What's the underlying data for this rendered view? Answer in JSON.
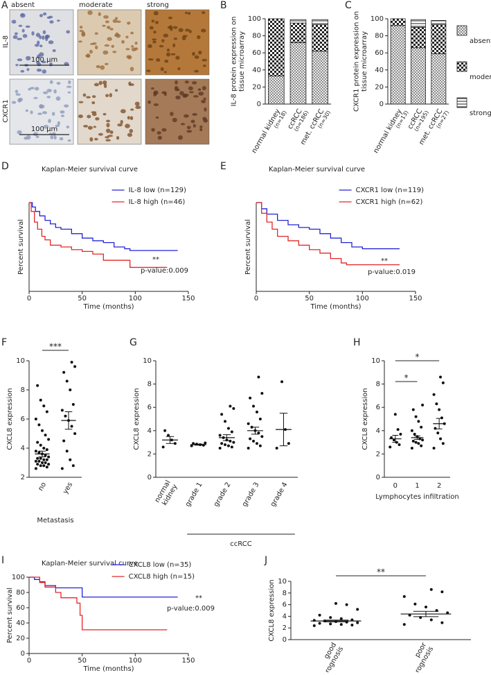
{
  "panel_a": {
    "panel": "A",
    "columns": [
      "absent",
      "moderate",
      "strong"
    ],
    "rows": [
      "IL-8",
      "CXCR1"
    ],
    "scale_bars": [
      "100 µm",
      "100 µm"
    ]
  },
  "chart_data": [
    {
      "type": "bar",
      "stacked": true,
      "panel": "B",
      "ylabel": "IL-8 protein expression on tissue microarray",
      "categories": [
        "normal kidney",
        "ccRCC",
        "met. ccRCC"
      ],
      "category_notes": [
        "(n=18)",
        "(n=186)",
        "(n=30)"
      ],
      "series": [
        {
          "values": [
            33,
            72,
            62
          ]
        },
        {
          "values": [
            67,
            23,
            31
          ]
        },
        {
          "values": [
            0,
            4,
            6
          ]
        }
      ],
      "ylim": [
        0,
        100
      ],
      "yticks": [
        0,
        20,
        40,
        60,
        80,
        100
      ]
    },
    {
      "type": "bar",
      "stacked": true,
      "panel": "C",
      "ylabel": "CXCR1 protein expression on tissue microarray",
      "categories": [
        "normal kidney",
        "ccRCC",
        "met. ccRCC"
      ],
      "category_notes": [
        "(n=13)",
        "(n=195)",
        "(n=27)"
      ],
      "series": [
        {
          "name": "absent",
          "values": [
            92,
            66,
            59
          ]
        },
        {
          "name": "moderate",
          "values": [
            8,
            24,
            34
          ]
        },
        {
          "name": "strong",
          "values": [
            0,
            9,
            5
          ]
        }
      ],
      "ylim": [
        0,
        100
      ],
      "yticks": [
        0,
        20,
        40,
        60,
        80,
        100
      ],
      "legend": "right"
    },
    {
      "type": "line",
      "step": true,
      "panel": "D",
      "title": "Kaplan-Meier survival curve",
      "xlabel": "Time (months)",
      "ylabel": "Percent survival",
      "series": [
        {
          "name": "IL-8 low (n=129)",
          "color": "#2323d6",
          "x": [
            0,
            3,
            6,
            10,
            15,
            20,
            25,
            30,
            40,
            50,
            60,
            70,
            80,
            90,
            95,
            140
          ],
          "values": [
            100,
            95,
            90,
            85,
            80,
            76,
            72,
            70,
            65,
            60,
            57,
            55,
            50,
            48,
            46,
            46
          ]
        },
        {
          "name": "IL-8 high (n=46)",
          "color": "#e32626",
          "x": [
            0,
            2,
            5,
            8,
            12,
            15,
            20,
            30,
            40,
            50,
            60,
            70,
            90,
            95,
            130
          ],
          "values": [
            100,
            90,
            78,
            70,
            62,
            58,
            52,
            50,
            47,
            45,
            42,
            35,
            35,
            27,
            27
          ]
        }
      ],
      "xlim": [
        0,
        150
      ],
      "xticks": [
        0,
        50,
        100,
        150
      ],
      "ylim": [
        0,
        100
      ],
      "annotations": [
        "**",
        "p-value:0.009"
      ],
      "legend": "upper right"
    },
    {
      "type": "line",
      "step": true,
      "panel": "E",
      "title": "Kaplan-Meier survival curve",
      "xlabel": "Time (months)",
      "ylabel": "Percent survival",
      "series": [
        {
          "name": "CXCR1 low (n=119)",
          "color": "#2323d6",
          "x": [
            0,
            5,
            10,
            20,
            30,
            40,
            50,
            60,
            70,
            80,
            90,
            100,
            135
          ],
          "values": [
            100,
            93,
            87,
            80,
            75,
            72,
            70,
            65,
            60,
            55,
            50,
            48,
            48
          ]
        },
        {
          "name": "CXCR1 high (n=62)",
          "color": "#e32626",
          "x": [
            0,
            5,
            10,
            15,
            20,
            30,
            40,
            50,
            60,
            70,
            80,
            85,
            135
          ],
          "values": [
            100,
            88,
            78,
            70,
            62,
            57,
            52,
            47,
            43,
            37,
            32,
            30,
            30
          ]
        }
      ],
      "xlim": [
        0,
        150
      ],
      "xticks": [
        0,
        50,
        100,
        150
      ],
      "ylim": [
        0,
        100
      ],
      "annotations": [
        "**",
        "p-value:0.019"
      ],
      "legend": "upper right"
    },
    {
      "type": "dot",
      "panel": "F",
      "ylabel": "CXCL8 expression",
      "xlabel": "Metastasis",
      "categories": [
        "no",
        "yes"
      ],
      "points": [
        [
          2.6,
          2.7,
          2.8,
          2.8,
          2.9,
          2.9,
          3.0,
          3.0,
          3.1,
          3.1,
          3.2,
          3.2,
          3.3,
          3.3,
          3.4,
          3.5,
          3.6,
          3.7,
          3.8,
          3.9,
          4.0,
          4.2,
          4.4,
          4.6,
          4.9,
          5.2,
          5.6,
          6.0,
          6.5,
          6.9,
          7.3,
          8.3
        ],
        [
          2.6,
          2.8,
          3.2,
          3.8,
          4.5,
          5.0,
          5.5,
          5.9,
          6.2,
          6.6,
          7.0,
          8.0,
          8.6,
          9.2,
          9.6,
          9.9
        ]
      ],
      "means": [
        3.6,
        5.9
      ],
      "sem": [
        0.2,
        0.6
      ],
      "ylim": [
        2,
        10
      ],
      "yticks": [
        2,
        4,
        6,
        8,
        10
      ],
      "significance": [
        "***"
      ]
    },
    {
      "type": "dot",
      "panel": "G",
      "ylabel": "CXCL8 expression",
      "group_label": "ccRCC",
      "categories": [
        "normal kidney",
        "grade 1",
        "grade 2",
        "grade 3",
        "grade 4"
      ],
      "points": [
        [
          2.6,
          2.9,
          3.2,
          3.6,
          4.0
        ],
        [
          2.7,
          2.75,
          2.8,
          2.85,
          2.9,
          2.95
        ],
        [
          2.5,
          2.6,
          2.7,
          2.8,
          2.9,
          3.0,
          3.1,
          3.2,
          3.4,
          3.6,
          3.9,
          4.2,
          4.8,
          5.4,
          5.9,
          6.1
        ],
        [
          2.5,
          2.7,
          2.9,
          3.1,
          3.3,
          3.5,
          3.8,
          4.0,
          4.3,
          4.6,
          5.0,
          5.6,
          6.1,
          6.8,
          7.2,
          8.6
        ],
        [
          2.5,
          2.9,
          4.1,
          8.2
        ]
      ],
      "means": [
        3.2,
        2.8,
        3.4,
        4.0,
        4.1
      ],
      "sem": [
        0.3,
        0.05,
        0.25,
        0.3,
        1.4
      ],
      "ylim": [
        0,
        10
      ],
      "yticks": [
        0,
        2,
        4,
        6,
        8,
        10
      ]
    },
    {
      "type": "dot",
      "panel": "H",
      "ylabel": "CXCL8 expression",
      "xlabel": "Lymphocytes infiltration",
      "categories": [
        "0",
        "1",
        "2"
      ],
      "points": [
        [
          2.6,
          2.8,
          3.0,
          3.2,
          3.4,
          3.7,
          4.1,
          5.4
        ],
        [
          2.5,
          2.7,
          2.9,
          3.0,
          3.1,
          3.2,
          3.3,
          3.5,
          3.7,
          4.0,
          4.3,
          4.8,
          5.2,
          5.8,
          6.2
        ],
        [
          2.5,
          2.9,
          3.3,
          3.8,
          4.2,
          4.6,
          5.1,
          5.8,
          6.3,
          7.1,
          8.1,
          8.6
        ]
      ],
      "means": [
        3.3,
        3.4,
        4.6
      ],
      "sem": [
        0.3,
        0.15,
        0.45
      ],
      "ylim": [
        0,
        10
      ],
      "yticks": [
        0,
        2,
        4,
        6,
        8,
        10
      ],
      "significance": [
        "*",
        "*"
      ]
    },
    {
      "type": "line",
      "step": true,
      "panel": "I",
      "title": "Kaplan-Meier survival curve",
      "xlabel": "Time (months)",
      "ylabel": "Percent survival",
      "series": [
        {
          "name": "CXCL8 low (n=35)",
          "color": "#2323d6",
          "x": [
            0,
            5,
            10,
            15,
            25,
            45,
            50,
            140
          ],
          "values": [
            100,
            97,
            94,
            89,
            86,
            86,
            74,
            74
          ]
        },
        {
          "name": "CXCL8 high (n=15)",
          "color": "#e32626",
          "x": [
            0,
            10,
            15,
            25,
            30,
            45,
            48,
            50,
            130
          ],
          "values": [
            100,
            93,
            87,
            80,
            73,
            66,
            50,
            31,
            31
          ]
        }
      ],
      "xlim": [
        0,
        150
      ],
      "xticks": [
        0,
        50,
        100,
        150
      ],
      "ylim": [
        0,
        100
      ],
      "yticks": [
        0,
        20,
        40,
        60,
        80,
        100
      ],
      "annotations": [
        "**",
        "p-value:0.009"
      ],
      "legend": "upper right"
    },
    {
      "type": "dot",
      "panel": "J",
      "ylabel": "CXCL8 expression",
      "categories": [
        "good prognosis",
        "poor prognosis"
      ],
      "points": [
        [
          2.4,
          2.5,
          2.6,
          2.7,
          2.8,
          2.9,
          3.0,
          3.1,
          3.2,
          3.3,
          3.4,
          3.6,
          3.8,
          4.2,
          5.2,
          6.0,
          6.2
        ],
        [
          2.6,
          2.9,
          3.4,
          3.8,
          4.2,
          4.6,
          5.0,
          5.6,
          6.1,
          7.4,
          8.2,
          8.6
        ]
      ],
      "means": [
        3.2,
        4.4
      ],
      "sem": [
        0.15,
        0.45
      ],
      "ylim": [
        0,
        10
      ],
      "yticks": [
        0,
        2,
        4,
        6,
        8,
        10
      ],
      "significance": [
        "**"
      ]
    }
  ]
}
